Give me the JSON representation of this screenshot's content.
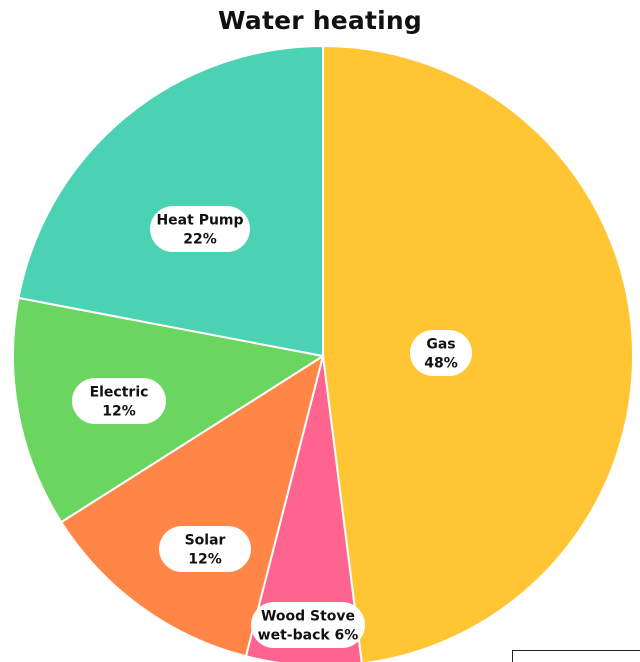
{
  "chart_data": {
    "type": "pie",
    "title": "Water heating",
    "slices": [
      {
        "name": "Gas",
        "value": 48,
        "label_lines": [
          "Gas",
          "48%"
        ],
        "color": "#FFC533"
      },
      {
        "name": "Wood Stove wet-back",
        "value": 6,
        "label_lines": [
          "Wood Stove",
          "wet-back 6%"
        ],
        "color": "#FF648E"
      },
      {
        "name": "Solar",
        "value": 12,
        "label_lines": [
          "Solar",
          "12%"
        ],
        "color": "#FF8646"
      },
      {
        "name": "Electric",
        "value": 12,
        "label_lines": [
          "Electric",
          "12%"
        ],
        "color": "#6AD55F"
      },
      {
        "name": "Heat Pump",
        "value": 22,
        "label_lines": [
          "Heat Pump",
          "22%"
        ],
        "color": "#4AD2B3"
      }
    ],
    "start": "12 o'clock",
    "direction": "clockwise",
    "legend": "none",
    "label_style": "white rounded pill inside slice"
  }
}
